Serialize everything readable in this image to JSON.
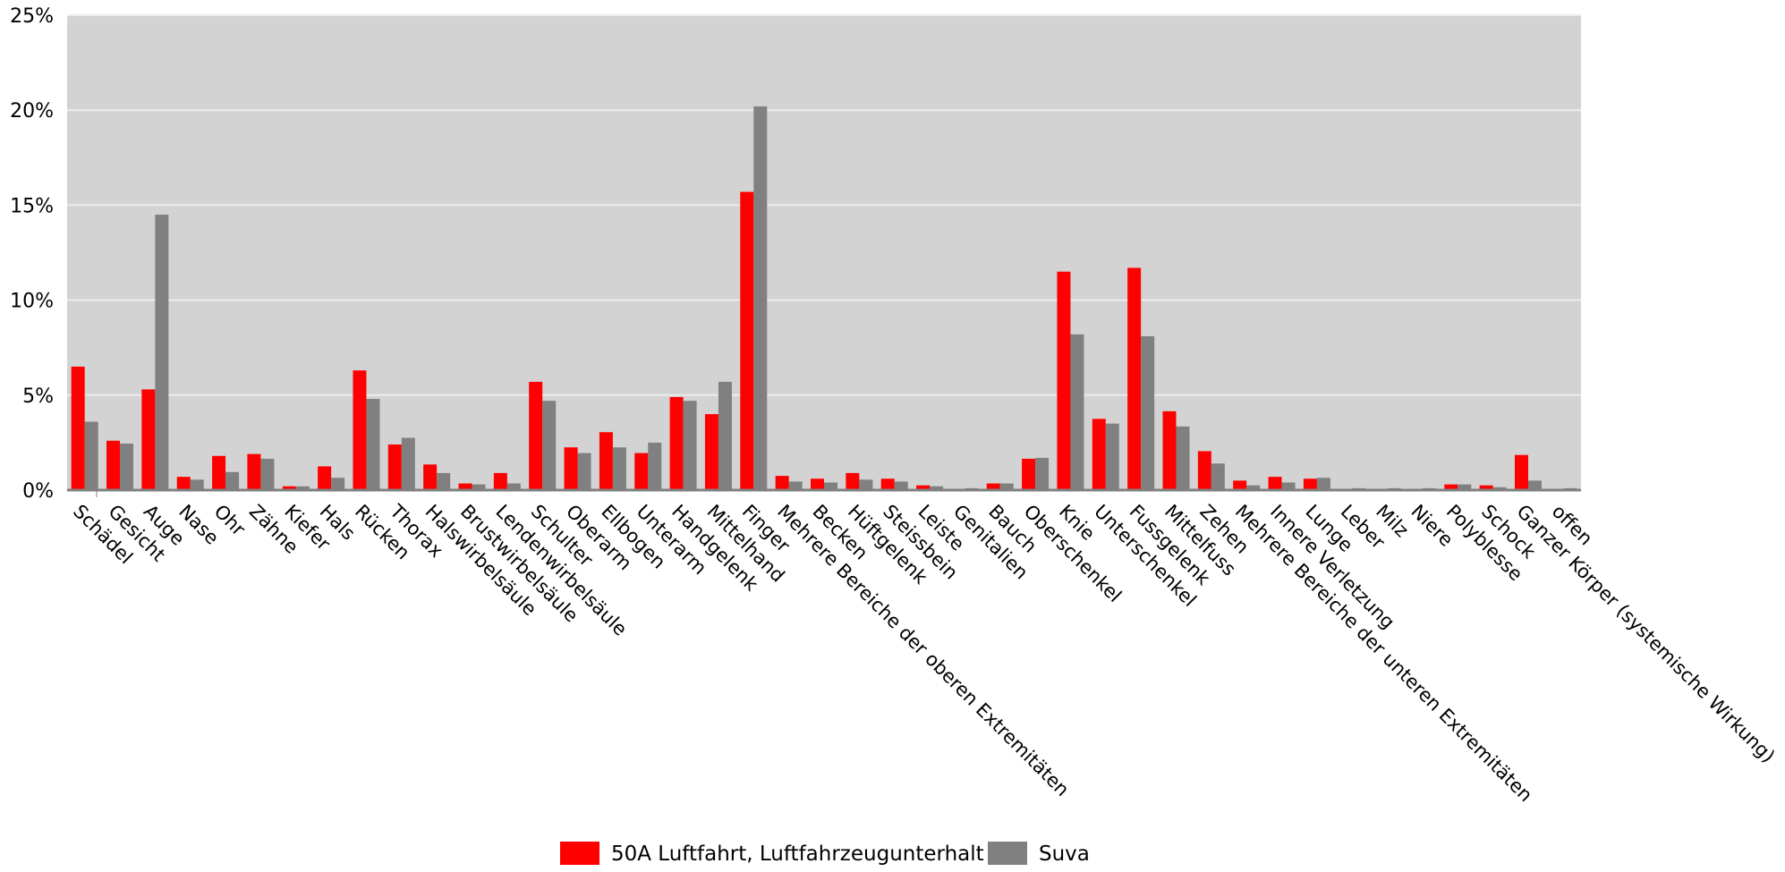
{
  "chart_data": {
    "type": "bar",
    "title": "",
    "xlabel": "",
    "ylabel": "",
    "ylim": [
      0,
      25
    ],
    "y_ticks": [
      "0%",
      "5%",
      "10%",
      "15%",
      "20%",
      "25%"
    ],
    "y_tick_values": [
      0,
      5,
      10,
      15,
      20,
      25
    ],
    "grid": true,
    "legend_position": "bottom",
    "colors": {
      "plot_background": "#d3d3d3",
      "grid": "#ececec"
    },
    "categories": [
      "Schädel",
      "Gesicht",
      "Auge",
      "Nase",
      "Ohr",
      "Zähne",
      "Kiefer",
      "Hals",
      "Rücken",
      "Thorax",
      "Halswirbelsäule",
      "Brustwirbelsäule",
      "Lendenwirbelsäule",
      "Schulter",
      "Oberarm",
      "Ellbogen",
      "Unterarm",
      "Handgelenk",
      "Mittelhand",
      "Finger",
      "Mehrere Bereiche der oberen Extremitäten",
      "Becken",
      "Hüftgelenk",
      "Steissbein",
      "Leiste",
      "Genitalien",
      "Bauch",
      "Oberschenkel",
      "Knie",
      "Unterschenkel",
      "Fussgelenk",
      "Mittelfuss",
      "Zehen",
      "Mehrere Bereiche der unteren Extremitäten",
      "Innere Verletzung",
      "Lunge",
      "Leber",
      "Milz",
      "Niere",
      "Polyblesse",
      "Schock",
      "Ganzer Körper (systemische Wirkung)",
      "offen"
    ],
    "series": [
      {
        "name": "50A Luftfahrt, Luftfahrzeugunterhalt",
        "color": "#ff0000",
        "values": [
          6.5,
          2.6,
          5.3,
          0.7,
          1.8,
          1.9,
          0.2,
          1.25,
          6.3,
          2.4,
          1.35,
          0.35,
          0.9,
          5.7,
          2.25,
          3.05,
          1.95,
          4.9,
          4.0,
          15.7,
          0.75,
          0.6,
          0.9,
          0.6,
          0.25,
          0.0,
          0.35,
          1.65,
          11.5,
          3.75,
          11.7,
          4.15,
          2.05,
          0.5,
          0.7,
          0.6,
          0.0,
          0.0,
          0.0,
          0.3,
          0.25,
          1.85,
          0.0
        ]
      },
      {
        "name": "Suva",
        "color": "#808080",
        "values": [
          3.6,
          2.45,
          14.5,
          0.55,
          0.95,
          1.65,
          0.2,
          0.65,
          4.8,
          2.75,
          0.9,
          0.3,
          0.35,
          4.7,
          1.95,
          2.25,
          2.5,
          4.7,
          5.7,
          20.2,
          0.45,
          0.4,
          0.55,
          0.45,
          0.2,
          0.1,
          0.35,
          1.7,
          8.2,
          3.5,
          8.1,
          3.35,
          1.4,
          0.25,
          0.4,
          0.65,
          0.1,
          0.1,
          0.1,
          0.3,
          0.15,
          0.5,
          0.1
        ]
      }
    ]
  }
}
